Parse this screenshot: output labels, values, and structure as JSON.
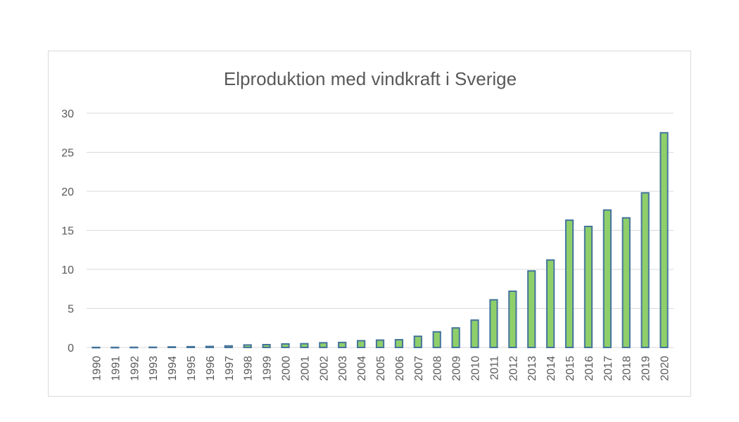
{
  "chart_data": {
    "type": "bar",
    "title": "Elproduktion med vindkraft i Sverige",
    "xlabel": "",
    "ylabel": "",
    "ylim": [
      0,
      30
    ],
    "yticks": [
      0,
      5,
      10,
      15,
      20,
      25,
      30
    ],
    "grid": true,
    "categories": [
      "1990",
      "1991",
      "1992",
      "1993",
      "1994",
      "1995",
      "1996",
      "1997",
      "1998",
      "1999",
      "2000",
      "2001",
      "2002",
      "2003",
      "2004",
      "2005",
      "2006",
      "2007",
      "2008",
      "2009",
      "2010",
      "2011",
      "2012",
      "2013",
      "2014",
      "2015",
      "2016",
      "2017",
      "2018",
      "2019",
      "2020"
    ],
    "values": [
      0.01,
      0.01,
      0.02,
      0.03,
      0.07,
      0.1,
      0.13,
      0.2,
      0.32,
      0.36,
      0.45,
      0.48,
      0.6,
      0.64,
      0.86,
      0.94,
      0.99,
      1.43,
      2.0,
      2.5,
      3.5,
      6.1,
      7.2,
      9.8,
      11.2,
      16.3,
      15.5,
      17.6,
      16.6,
      19.8,
      27.5
    ],
    "colors": {
      "bar_fill": "#8fcf6a",
      "bar_stroke": "#44749c",
      "grid": "#d9d9d9",
      "text": "#595959"
    }
  }
}
